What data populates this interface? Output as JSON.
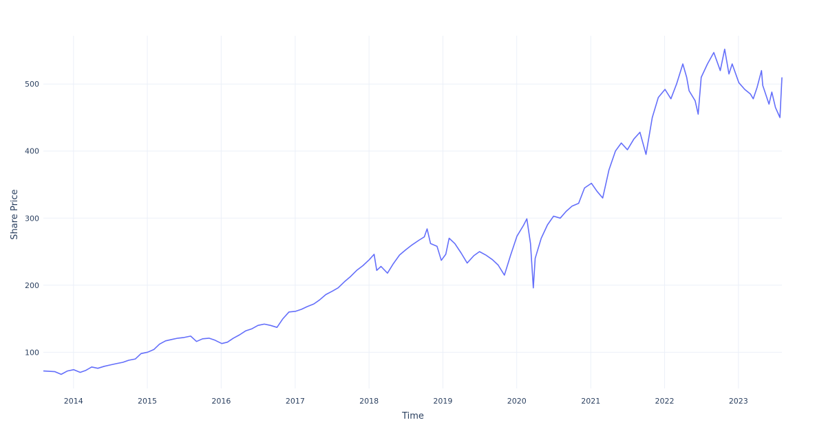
{
  "chart_data": {
    "type": "line",
    "title": "",
    "xlabel": "Time",
    "ylabel": "Share Price",
    "x_tick_labels": [
      "2014",
      "2015",
      "2016",
      "2017",
      "2018",
      "2019",
      "2020",
      "2021",
      "2022",
      "2023"
    ],
    "y_tick_labels": [
      "100",
      "200",
      "300",
      "400",
      "500"
    ],
    "xlim": [
      "2013-08-05",
      "2023-08-04"
    ],
    "ylim": [
      46,
      572
    ],
    "grid": true,
    "line_color": "#636efa",
    "series": [
      {
        "x": [
          "2013-08-05",
          "2013-10-01",
          "2013-11-01",
          "2013-12-02",
          "2014-01-02",
          "2014-02-03",
          "2014-03-03",
          "2014-04-01",
          "2014-05-01",
          "2014-06-02",
          "2014-07-01",
          "2014-08-01",
          "2014-09-02",
          "2014-10-01",
          "2014-11-03",
          "2014-12-01",
          "2015-01-02",
          "2015-02-02",
          "2015-03-02",
          "2015-04-01",
          "2015-05-01",
          "2015-06-01",
          "2015-07-01",
          "2015-08-03",
          "2015-09-01",
          "2015-10-01",
          "2015-11-02",
          "2015-12-01",
          "2016-01-04",
          "2016-02-01",
          "2016-03-01",
          "2016-04-01",
          "2016-05-02",
          "2016-06-01",
          "2016-07-01",
          "2016-08-01",
          "2016-09-01",
          "2016-10-03",
          "2016-11-01",
          "2016-12-01",
          "2017-01-03",
          "2017-02-01",
          "2017-03-01",
          "2017-04-03",
          "2017-05-01",
          "2017-06-01",
          "2017-07-03",
          "2017-08-01",
          "2017-09-01",
          "2017-10-02",
          "2017-11-01",
          "2017-12-01",
          "2018-01-02",
          "2018-01-26",
          "2018-02-08",
          "2018-03-01",
          "2018-04-02",
          "2018-05-01",
          "2018-06-01",
          "2018-07-02",
          "2018-08-01",
          "2018-09-04",
          "2018-10-01",
          "2018-10-15",
          "2018-11-01",
          "2018-12-03",
          "2018-12-24",
          "2019-01-15",
          "2019-02-01",
          "2019-03-01",
          "2019-04-01",
          "2019-05-01",
          "2019-06-03",
          "2019-07-01",
          "2019-08-01",
          "2019-09-03",
          "2019-10-01",
          "2019-11-01",
          "2019-12-02",
          "2020-01-02",
          "2020-02-03",
          "2020-02-20",
          "2020-03-09",
          "2020-03-23",
          "2020-04-01",
          "2020-05-01",
          "2020-06-01",
          "2020-07-01",
          "2020-08-03",
          "2020-09-01",
          "2020-10-01",
          "2020-11-02",
          "2020-12-01",
          "2021-01-04",
          "2021-02-01",
          "2021-03-01",
          "2021-04-01",
          "2021-05-03",
          "2021-06-01",
          "2021-07-01",
          "2021-08-02",
          "2021-09-01",
          "2021-10-01",
          "2021-11-01",
          "2021-12-01",
          "2022-01-03",
          "2022-02-01",
          "2022-03-01",
          "2022-04-01",
          "2022-04-20",
          "2022-05-02",
          "2022-06-01",
          "2022-06-16",
          "2022-07-01",
          "2022-08-01",
          "2022-09-01",
          "2022-10-03",
          "2022-10-25",
          "2022-11-15",
          "2022-12-01",
          "2023-01-03",
          "2023-02-01",
          "2023-03-01",
          "2023-03-15",
          "2023-04-03",
          "2023-04-25",
          "2023-05-01",
          "2023-06-01",
          "2023-06-15",
          "2023-07-03",
          "2023-07-25",
          "2023-08-04"
        ],
        "y": [
          72,
          71,
          67,
          72,
          74,
          70,
          73,
          78,
          76,
          79,
          81,
          83,
          85,
          88,
          90,
          98,
          100,
          104,
          112,
          117,
          119,
          121,
          122,
          124,
          116,
          120,
          121,
          118,
          113,
          115,
          121,
          126,
          132,
          135,
          140,
          142,
          140,
          137,
          150,
          160,
          161,
          164,
          168,
          172,
          178,
          186,
          191,
          196,
          205,
          213,
          222,
          229,
          238,
          246,
          222,
          228,
          218,
          232,
          245,
          253,
          260,
          267,
          272,
          284,
          262,
          258,
          237,
          246,
          270,
          262,
          248,
          233,
          244,
          250,
          245,
          238,
          230,
          215,
          245,
          273,
          289,
          299,
          262,
          196,
          240,
          270,
          290,
          303,
          300,
          310,
          318,
          322,
          345,
          352,
          340,
          330,
          372,
          400,
          412,
          402,
          418,
          428,
          395,
          450,
          480,
          492,
          478,
          500,
          530,
          510,
          490,
          475,
          455,
          510,
          530,
          547,
          520,
          552,
          515,
          530,
          502,
          492,
          485,
          478,
          495,
          520,
          498,
          470,
          488,
          465,
          450,
          510
        ]
      }
    ]
  }
}
